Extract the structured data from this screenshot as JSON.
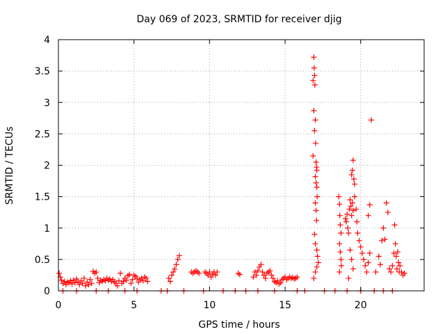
{
  "chart_data": {
    "type": "scatter",
    "title": "Day 069 of 2023, SRMTID for receiver djig",
    "xlabel": "GPS time / hours",
    "ylabel": "SRMTID / TECUs",
    "xlim": [
      0,
      24.2
    ],
    "ylim": [
      0,
      4
    ],
    "x_ticks": [
      0,
      5,
      10,
      15,
      20
    ],
    "x_tick_labels": [
      "0",
      "5",
      "10",
      "15",
      "20"
    ],
    "y_ticks": [
      0,
      0.5,
      1,
      1.5,
      2,
      2.5,
      3,
      3.5,
      4
    ],
    "y_tick_labels": [
      "0",
      "0.5",
      "1",
      "1.5",
      "2",
      "2.5",
      "3",
      "3.5",
      "4"
    ],
    "grid": true,
    "marker": "plus",
    "color": "#ff0000",
    "series": [
      {
        "name": "SRMTID",
        "points": [
          [
            0.05,
            0.28
          ],
          [
            0.12,
            0.22
          ],
          [
            0.2,
            0.17
          ],
          [
            0.3,
            0.12
          ],
          [
            0.4,
            0.15
          ],
          [
            0.5,
            0.1
          ],
          [
            0.6,
            0.14
          ],
          [
            0.7,
            0.13
          ],
          [
            0.8,
            0.16
          ],
          [
            0.9,
            0.11
          ],
          [
            1.0,
            0.17
          ],
          [
            1.1,
            0.13
          ],
          [
            1.2,
            0.19
          ],
          [
            1.3,
            0.14
          ],
          [
            1.4,
            0.1
          ],
          [
            1.5,
            0.16
          ],
          [
            1.6,
            0.12
          ],
          [
            1.7,
            0.2
          ],
          [
            1.8,
            0.08
          ],
          [
            1.9,
            0.14
          ],
          [
            2.0,
            0.1
          ],
          [
            2.1,
            0.18
          ],
          [
            2.2,
            0.12
          ],
          [
            2.3,
            0.31
          ],
          [
            2.4,
            0.28
          ],
          [
            2.5,
            0.3
          ],
          [
            2.6,
            0.2
          ],
          [
            2.7,
            0.13
          ],
          [
            2.8,
            0.17
          ],
          [
            2.9,
            0.15
          ],
          [
            3.0,
            0.18
          ],
          [
            3.1,
            0.16
          ],
          [
            3.2,
            0.2
          ],
          [
            3.3,
            0.17
          ],
          [
            3.4,
            0.19
          ],
          [
            3.5,
            0.15
          ],
          [
            3.6,
            0.18
          ],
          [
            3.7,
            0.14
          ],
          [
            3.8,
            0.12
          ],
          [
            3.9,
            0.08
          ],
          [
            4.0,
            0.16
          ],
          [
            4.1,
            0.28
          ],
          [
            4.2,
            0.12
          ],
          [
            4.3,
            0.15
          ],
          [
            4.4,
            0.2
          ],
          [
            4.5,
            0.17
          ],
          [
            4.6,
            0.24
          ],
          [
            4.7,
            0.26
          ],
          [
            4.8,
            0.12
          ],
          [
            4.9,
            0.18
          ],
          [
            5.0,
            0.25
          ],
          [
            5.1,
            0.23
          ],
          [
            5.2,
            0.2
          ],
          [
            5.3,
            0.14
          ],
          [
            5.4,
            0.18
          ],
          [
            5.5,
            0.2
          ],
          [
            5.6,
            0.16
          ],
          [
            5.7,
            0.22
          ],
          [
            5.8,
            0.2
          ],
          [
            5.9,
            0.15
          ],
          [
            7.3,
            0.2
          ],
          [
            7.4,
            0.15
          ],
          [
            7.5,
            0.25
          ],
          [
            7.6,
            0.3
          ],
          [
            7.7,
            0.35
          ],
          [
            7.8,
            0.42
          ],
          [
            7.9,
            0.5
          ],
          [
            8.0,
            0.56
          ],
          [
            8.8,
            0.3
          ],
          [
            8.9,
            0.28
          ],
          [
            9.0,
            0.3
          ],
          [
            9.1,
            0.32
          ],
          [
            9.2,
            0.3
          ],
          [
            9.3,
            0.28
          ],
          [
            9.7,
            0.3
          ],
          [
            9.8,
            0.28
          ],
          [
            9.9,
            0.25
          ],
          [
            10.0,
            0.3
          ],
          [
            10.1,
            0.22
          ],
          [
            10.2,
            0.27
          ],
          [
            10.3,
            0.3
          ],
          [
            10.4,
            0.25
          ],
          [
            10.5,
            0.3
          ],
          [
            11.9,
            0.28
          ],
          [
            12.0,
            0.26
          ],
          [
            12.9,
            0.22
          ],
          [
            13.0,
            0.3
          ],
          [
            13.1,
            0.25
          ],
          [
            13.2,
            0.32
          ],
          [
            13.3,
            0.38
          ],
          [
            13.4,
            0.42
          ],
          [
            13.5,
            0.3
          ],
          [
            13.6,
            0.25
          ],
          [
            13.7,
            0.2
          ],
          [
            13.8,
            0.28
          ],
          [
            13.9,
            0.3
          ],
          [
            14.0,
            0.32
          ],
          [
            14.1,
            0.25
          ],
          [
            14.2,
            0.2
          ],
          [
            14.3,
            0.15
          ],
          [
            14.4,
            0.13
          ],
          [
            14.5,
            0.16
          ],
          [
            14.6,
            0.11
          ],
          [
            14.7,
            0.13
          ],
          [
            14.8,
            0.18
          ],
          [
            14.9,
            0.2
          ],
          [
            15.0,
            0.22
          ],
          [
            15.1,
            0.18
          ],
          [
            15.2,
            0.2
          ],
          [
            15.3,
            0.22
          ],
          [
            15.4,
            0.2
          ],
          [
            15.5,
            0.21
          ],
          [
            15.6,
            0.19
          ],
          [
            15.7,
            0.2
          ],
          [
            15.8,
            0.22
          ],
          [
            16.85,
            3.35
          ],
          [
            16.9,
            3.72
          ],
          [
            16.92,
            3.55
          ],
          [
            16.95,
            3.43
          ],
          [
            16.97,
            3.28
          ],
          [
            16.9,
            2.87
          ],
          [
            16.95,
            2.55
          ],
          [
            17.0,
            2.72
          ],
          [
            17.02,
            2.35
          ],
          [
            16.85,
            2.15
          ],
          [
            17.05,
            2.05
          ],
          [
            17.08,
            1.97
          ],
          [
            17.1,
            1.92
          ],
          [
            17.0,
            1.82
          ],
          [
            17.05,
            1.72
          ],
          [
            17.1,
            1.65
          ],
          [
            17.12,
            1.5
          ],
          [
            17.0,
            1.4
          ],
          [
            17.05,
            1.28
          ],
          [
            17.08,
            1.12
          ],
          [
            16.95,
            0.9
          ],
          [
            17.0,
            0.75
          ],
          [
            17.1,
            0.65
          ],
          [
            17.15,
            0.55
          ],
          [
            17.2,
            0.45
          ],
          [
            17.1,
            0.38
          ],
          [
            17.0,
            0.3
          ],
          [
            16.9,
            0.2
          ],
          [
            18.55,
            1.5
          ],
          [
            18.6,
            1.38
          ],
          [
            18.62,
            1.2
          ],
          [
            18.65,
            1.05
          ],
          [
            18.7,
            0.92
          ],
          [
            18.6,
            0.75
          ],
          [
            18.65,
            0.62
          ],
          [
            18.7,
            0.5
          ],
          [
            18.72,
            0.4
          ],
          [
            18.6,
            0.3
          ],
          [
            19.0,
            1.15
          ],
          [
            19.05,
            1.1
          ],
          [
            19.1,
            1.22
          ],
          [
            19.15,
            1.0
          ],
          [
            19.2,
            0.92
          ],
          [
            19.25,
            1.3
          ],
          [
            19.3,
            1.45
          ],
          [
            19.35,
            1.35
          ],
          [
            19.4,
            1.2
          ],
          [
            19.45,
            1.4
          ],
          [
            19.5,
            1.28
          ],
          [
            19.4,
            1.85
          ],
          [
            19.45,
            1.92
          ],
          [
            19.5,
            2.08
          ],
          [
            19.55,
            1.78
          ],
          [
            19.6,
            1.7
          ],
          [
            19.6,
            1.5
          ],
          [
            19.7,
            1.3
          ],
          [
            19.75,
            1.1
          ],
          [
            19.8,
            0.92
          ],
          [
            19.9,
            0.8
          ],
          [
            20.0,
            0.7
          ],
          [
            20.1,
            0.6
          ],
          [
            20.2,
            0.5
          ],
          [
            20.3,
            0.4
          ],
          [
            20.4,
            0.3
          ],
          [
            20.5,
            0.45
          ],
          [
            20.6,
            0.6
          ],
          [
            20.5,
            1.2
          ],
          [
            20.6,
            1.37
          ],
          [
            20.7,
            2.72
          ],
          [
            19.3,
            0.65
          ],
          [
            19.4,
            0.5
          ],
          [
            19.5,
            0.35
          ],
          [
            19.2,
            0.2
          ],
          [
            21.0,
            0.3
          ],
          [
            21.2,
            0.55
          ],
          [
            21.3,
            0.42
          ],
          [
            21.4,
            0.8
          ],
          [
            21.5,
            1.0
          ],
          [
            21.6,
            0.82
          ],
          [
            21.7,
            1.4
          ],
          [
            21.8,
            1.25
          ],
          [
            21.9,
            0.35
          ],
          [
            22.0,
            0.3
          ],
          [
            22.1,
            0.4
          ],
          [
            22.2,
            0.6
          ],
          [
            22.25,
            1.05
          ],
          [
            22.3,
            0.75
          ],
          [
            22.35,
            0.55
          ],
          [
            22.4,
            0.35
          ],
          [
            22.45,
            0.62
          ],
          [
            22.5,
            0.45
          ],
          [
            22.55,
            0.3
          ],
          [
            22.6,
            0.4
          ],
          [
            22.7,
            0.3
          ],
          [
            22.8,
            0.25
          ],
          [
            22.9,
            0.28
          ],
          [
            0.3,
            0.0
          ],
          [
            1.2,
            0.0
          ],
          [
            2.5,
            0.0
          ],
          [
            3.3,
            0.0
          ],
          [
            4.4,
            0.0
          ],
          [
            5.2,
            0.0
          ],
          [
            6.8,
            0.0
          ],
          [
            7.2,
            0.0
          ],
          [
            8.3,
            0.0
          ],
          [
            9.6,
            0.0
          ],
          [
            10.9,
            0.0
          ],
          [
            11.7,
            0.0
          ],
          [
            12.4,
            0.0
          ],
          [
            13.2,
            0.0
          ],
          [
            14.3,
            0.0
          ],
          [
            15.8,
            0.0
          ],
          [
            16.3,
            0.0
          ],
          [
            17.6,
            0.0
          ],
          [
            18.3,
            0.0
          ],
          [
            19.1,
            0.0
          ],
          [
            20.0,
            0.0
          ],
          [
            20.9,
            0.0
          ],
          [
            21.5,
            0.0
          ],
          [
            22.1,
            0.0
          ]
        ]
      }
    ]
  }
}
